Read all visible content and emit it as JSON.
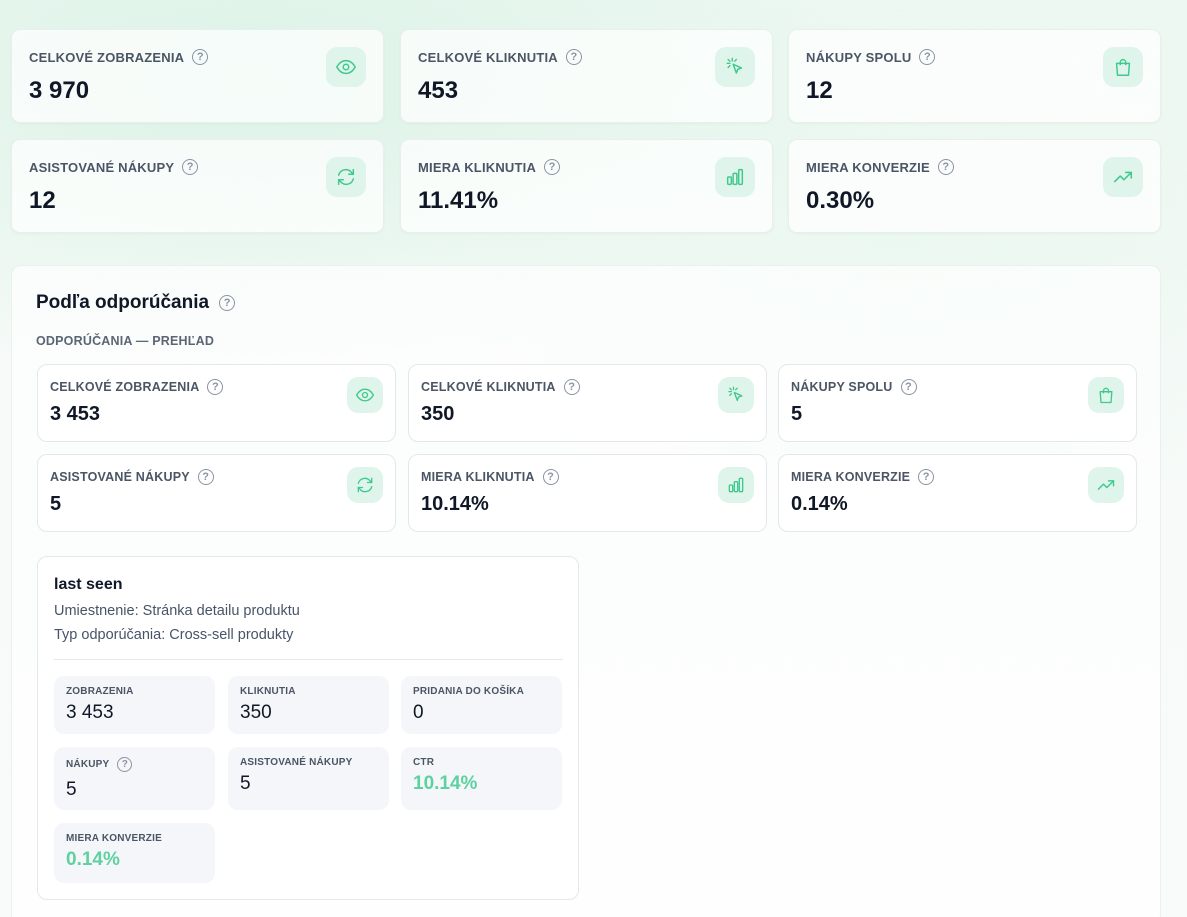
{
  "colors": {
    "accent": "#3fc98e",
    "icon_bg": "#dff4ea",
    "green_value": "#5ed1a0"
  },
  "top_kpis": [
    {
      "label": "CELKOVÉ ZOBRAZENIA",
      "value": "3 970",
      "icon": "eye-icon"
    },
    {
      "label": "CELKOVÉ KLIKNUTIA",
      "value": "453",
      "icon": "cursor-click-icon"
    },
    {
      "label": "NÁKUPY SPOLU",
      "value": "12",
      "icon": "shopping-bag-icon"
    },
    {
      "label": "ASISTOVANÉ NÁKUPY",
      "value": "12",
      "icon": "refresh-icon"
    },
    {
      "label": "MIERA KLIKNUTIA",
      "value": "11.41%",
      "icon": "bar-chart-icon"
    },
    {
      "label": "MIERA KONVERZIE",
      "value": "0.30%",
      "icon": "trending-up-icon"
    }
  ],
  "section": {
    "title": "Podľa odporúčania",
    "subtitle": "ODPORÚČANIA — PREHĽAD",
    "kpis": [
      {
        "label": "CELKOVÉ ZOBRAZENIA",
        "value": "3 453",
        "icon": "eye-icon"
      },
      {
        "label": "CELKOVÉ KLIKNUTIA",
        "value": "350",
        "icon": "cursor-click-icon"
      },
      {
        "label": "NÁKUPY SPOLU",
        "value": "5",
        "icon": "shopping-bag-icon"
      },
      {
        "label": "ASISTOVANÉ NÁKUPY",
        "value": "5",
        "icon": "refresh-icon"
      },
      {
        "label": "MIERA KLIKNUTIA",
        "value": "10.14%",
        "icon": "bar-chart-icon"
      },
      {
        "label": "MIERA KONVERZIE",
        "value": "0.14%",
        "icon": "trending-up-icon"
      }
    ],
    "detail": {
      "title": "last seen",
      "placement": "Umiestnenie: Stránka detailu produktu",
      "type": "Typ odporúčania: Cross-sell produkty",
      "stats": [
        {
          "label": "ZOBRAZENIA",
          "value": "3 453"
        },
        {
          "label": "KLIKNUTIA",
          "value": "350"
        },
        {
          "label": "PRIDANIA DO KOŠÍKA",
          "value": "0"
        },
        {
          "label": "NÁKUPY",
          "value": "5"
        },
        {
          "label": "ASISTOVANÉ NÁKUPY",
          "value": "5"
        },
        {
          "label": "CTR",
          "value": "10.14%"
        },
        {
          "label": "MIERA KONVERZIE",
          "value": "0.14%"
        }
      ]
    }
  }
}
